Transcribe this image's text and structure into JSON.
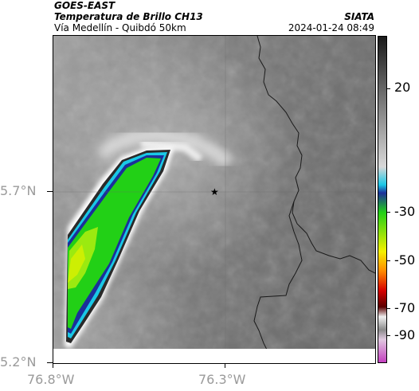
{
  "header": {
    "satellite": "GOES-EAST",
    "product": "Temperatura de Brillo CH13",
    "route": "Vía Medellín - Quibdó 50km",
    "agency": "SIATA",
    "datetime": "2024-01-24 08:49"
  },
  "axes": {
    "lat_ticks": [
      "5.7°N",
      "5.2°N"
    ],
    "lon_ticks": [
      "76.8°W",
      "76.3°W"
    ]
  },
  "colorbar": {
    "labels": [
      "20",
      "-30",
      "-50",
      "-70",
      "-90"
    ],
    "colors": {
      "dark": "#1a1a1a",
      "light_gray": "#d8d8d8",
      "cyan": "#19c8e6",
      "blue": "#1b2f9a",
      "green": "#22d016",
      "yellow": "#f4f000",
      "orange": "#ff8a00",
      "red": "#d60000",
      "dark_red": "#5a0000",
      "magenta": "#c43fbf"
    }
  },
  "map": {
    "marker": "star-icon"
  }
}
